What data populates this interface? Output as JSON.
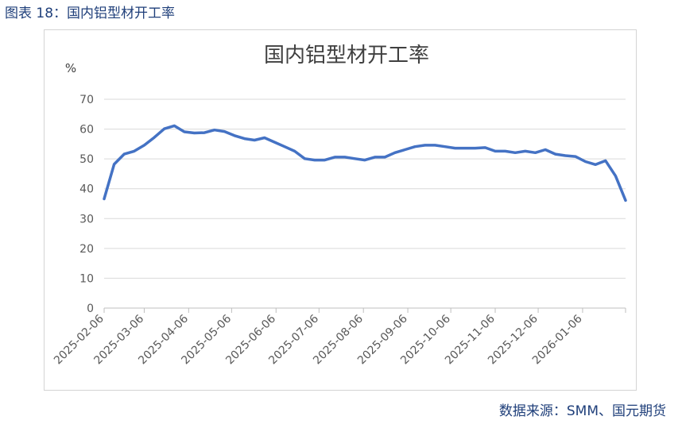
{
  "caption": "图表 18：国内铝型材开工率",
  "source": "数据来源：SMM、国元期货",
  "chart_data": {
    "type": "line",
    "title": "国内铝型材开工率",
    "ylabel": "%",
    "xlabel": "",
    "ylim": [
      0,
      70
    ],
    "yticks": [
      0,
      10,
      20,
      30,
      40,
      50,
      60,
      70
    ],
    "grid": true,
    "legend": "none",
    "line_color": "#4472c4",
    "x_tick_labels": [
      "2025-02-06",
      "2025-03-06",
      "2025-04-06",
      "2025-05-06",
      "2025-06-06",
      "2025-07-06",
      "2025-08-06",
      "2025-09-06",
      "2025-10-06",
      "2025-11-06",
      "2025-12-06",
      "2026-01-06"
    ],
    "x_range": [
      "2025-02-06",
      "2026-02-05"
    ],
    "x": [
      "2025-02-06",
      "2025-02-13",
      "2025-02-20",
      "2025-02-27",
      "2025-03-06",
      "2025-03-13",
      "2025-03-20",
      "2025-03-27",
      "2025-04-03",
      "2025-04-10",
      "2025-04-17",
      "2025-04-24",
      "2025-05-01",
      "2025-05-08",
      "2025-05-15",
      "2025-05-22",
      "2025-05-29",
      "2025-06-05",
      "2025-06-12",
      "2025-06-19",
      "2025-06-26",
      "2025-07-03",
      "2025-07-10",
      "2025-07-17",
      "2025-07-24",
      "2025-07-31",
      "2025-08-07",
      "2025-08-14",
      "2025-08-21",
      "2025-08-28",
      "2025-09-04",
      "2025-09-11",
      "2025-09-18",
      "2025-09-25",
      "2025-10-02",
      "2025-10-09",
      "2025-10-16",
      "2025-10-23",
      "2025-10-30",
      "2025-11-06",
      "2025-11-13",
      "2025-11-20",
      "2025-11-27",
      "2025-12-04",
      "2025-12-11",
      "2025-12-18",
      "2025-12-25",
      "2026-01-01",
      "2026-01-08",
      "2026-01-15",
      "2026-01-22",
      "2026-01-29",
      "2026-02-05"
    ],
    "values": [
      36.6,
      48.2,
      51.6,
      52.6,
      54.6,
      57.2,
      60.1,
      61.1,
      59.1,
      58.7,
      58.8,
      59.7,
      59.2,
      57.8,
      56.8,
      56.3,
      57.1,
      55.6,
      54.1,
      52.6,
      50.1,
      49.6,
      49.6,
      50.6,
      50.6,
      50.1,
      49.6,
      50.6,
      50.6,
      52.1,
      53.1,
      54.1,
      54.6,
      54.6,
      54.1,
      53.6,
      53.6,
      53.6,
      53.8,
      52.6,
      52.6,
      52.1,
      52.6,
      52.1,
      53.1,
      51.6,
      51.1,
      50.8,
      49.1,
      48.1,
      49.4,
      44.3,
      36.1
    ]
  }
}
